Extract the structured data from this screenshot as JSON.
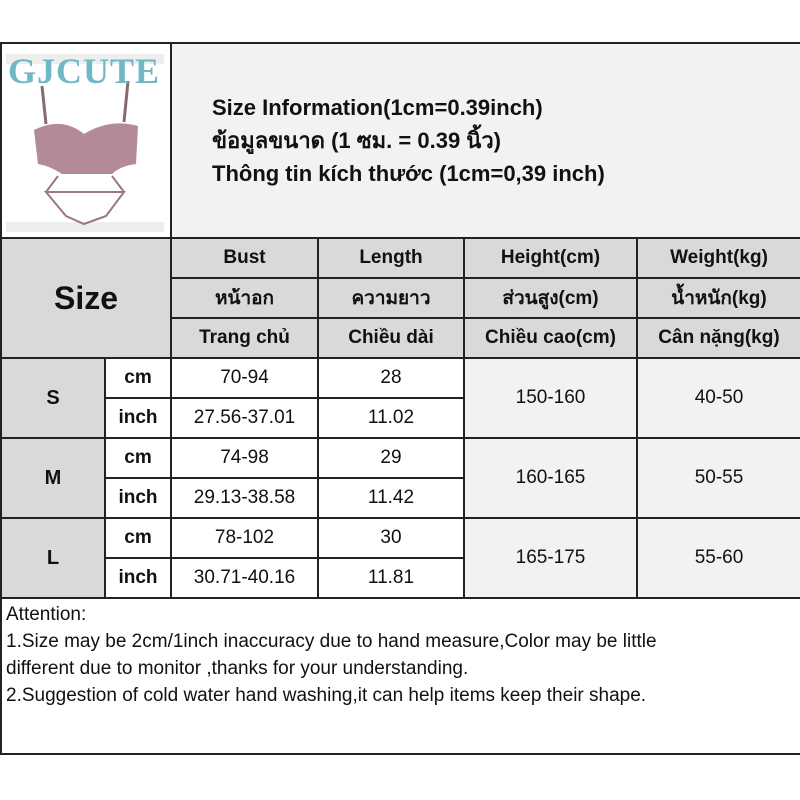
{
  "brand": {
    "logo_text": "GJCUTE"
  },
  "info": {
    "line1": "Size Information(1cm=0.39inch)",
    "line2": "ข้อมูลขนาด (1 ซม. = 0.39 นิ้ว)",
    "line3": "Thông tin kích thước (1cm=0,39 inch)"
  },
  "header": {
    "size_label": "Size",
    "columns": [
      {
        "en": "Bust",
        "th": "หน้าอก",
        "vi": "Trang chủ"
      },
      {
        "en": "Length",
        "th": "ความยาว",
        "vi": "Chiều dài"
      },
      {
        "en": "Height(cm)",
        "th": "ส่วนสูง(cm)",
        "vi": "Chiều cao(cm)"
      },
      {
        "en": "Weight(kg)",
        "th": "น้ำหนัก(kg)",
        "vi": "Cân nặng(kg)"
      }
    ]
  },
  "rows": [
    {
      "size": "S",
      "cm_label": "cm",
      "inch_label": "inch",
      "bust_cm": "70-94",
      "bust_inch": "27.56-37.01",
      "length_cm": "28",
      "length_inch": "11.02",
      "height": "150-160",
      "weight": "40-50"
    },
    {
      "size": "M",
      "cm_label": "cm",
      "inch_label": "inch",
      "bust_cm": "74-98",
      "bust_inch": "29.13-38.58",
      "length_cm": "29",
      "length_inch": "11.42",
      "height": "160-165",
      "weight": "50-55"
    },
    {
      "size": "L",
      "cm_label": "cm",
      "inch_label": "inch",
      "bust_cm": "78-102",
      "bust_inch": "30.71-40.16",
      "length_cm": "30",
      "length_inch": "11.81",
      "height": "165-175",
      "weight": "55-60"
    }
  ],
  "attention": {
    "title": "Attention:",
    "line1": "1.Size may be 2cm/1inch inaccuracy due to hand measure,Color may be little",
    "line2": "different due to monitor ,thanks for your understanding.",
    "line3": "2.Suggestion of cold water hand washing,it can help items keep their shape."
  },
  "colors": {
    "header_gray": "#d9d9d9",
    "light_gray": "#f2f2f2",
    "logo": "#6fb8c4",
    "product": "#b48a96"
  }
}
